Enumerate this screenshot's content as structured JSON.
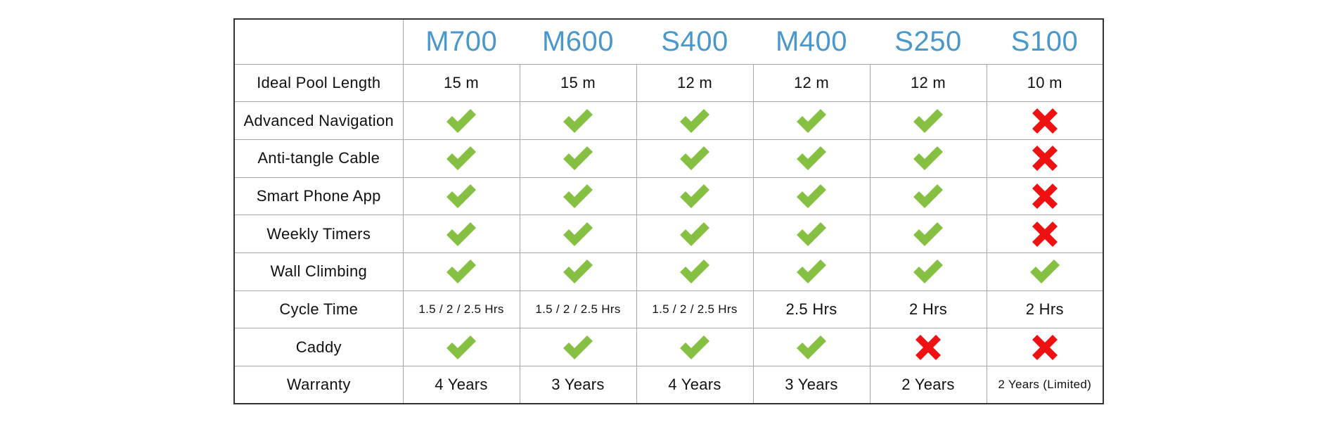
{
  "colors": {
    "model_header": "#4a97cc",
    "check": "#86c042",
    "cross": "#ee1111",
    "border_outer": "#333333",
    "border_inner": "#a8a8a8"
  },
  "models": [
    "M700",
    "M600",
    "S400",
    "M400",
    "S250",
    "S100"
  ],
  "rows": [
    {
      "label": "Ideal Pool Length",
      "type": "text",
      "values": [
        "15 m",
        "15 m",
        "12 m",
        "12 m",
        "12 m",
        "10 m"
      ]
    },
    {
      "label": "Advanced Navigation",
      "type": "icon",
      "values": [
        "check-icon",
        "check-icon",
        "check-icon",
        "check-icon",
        "check-icon",
        "cross-icon"
      ]
    },
    {
      "label": "Anti-tangle Cable",
      "type": "icon",
      "values": [
        "check-icon",
        "check-icon",
        "check-icon",
        "check-icon",
        "check-icon",
        "cross-icon"
      ]
    },
    {
      "label": "Smart Phone App",
      "type": "icon",
      "values": [
        "check-icon",
        "check-icon",
        "check-icon",
        "check-icon",
        "check-icon",
        "cross-icon"
      ]
    },
    {
      "label": "Weekly Timers",
      "type": "icon",
      "values": [
        "check-icon",
        "check-icon",
        "check-icon",
        "check-icon",
        "check-icon",
        "cross-icon"
      ]
    },
    {
      "label": "Wall Climbing",
      "type": "icon",
      "values": [
        "check-icon",
        "check-icon",
        "check-icon",
        "check-icon",
        "check-icon",
        "check-icon"
      ]
    },
    {
      "label": "Cycle Time",
      "type": "text",
      "values": [
        "1.5 / 2 / 2.5 Hrs",
        "1.5 / 2 / 2.5 Hrs",
        "1.5 / 2 / 2.5 Hrs",
        "2.5 Hrs",
        "2 Hrs",
        "2 Hrs"
      ]
    },
    {
      "label": "Caddy",
      "type": "icon",
      "values": [
        "check-icon",
        "check-icon",
        "check-icon",
        "check-icon",
        "cross-icon",
        "cross-icon"
      ]
    },
    {
      "label": "Warranty",
      "type": "text",
      "values": [
        "4 Years",
        "3 Years",
        "4 Years",
        "3 Years",
        "2 Years",
        "2 Years (Limited)"
      ]
    }
  ]
}
